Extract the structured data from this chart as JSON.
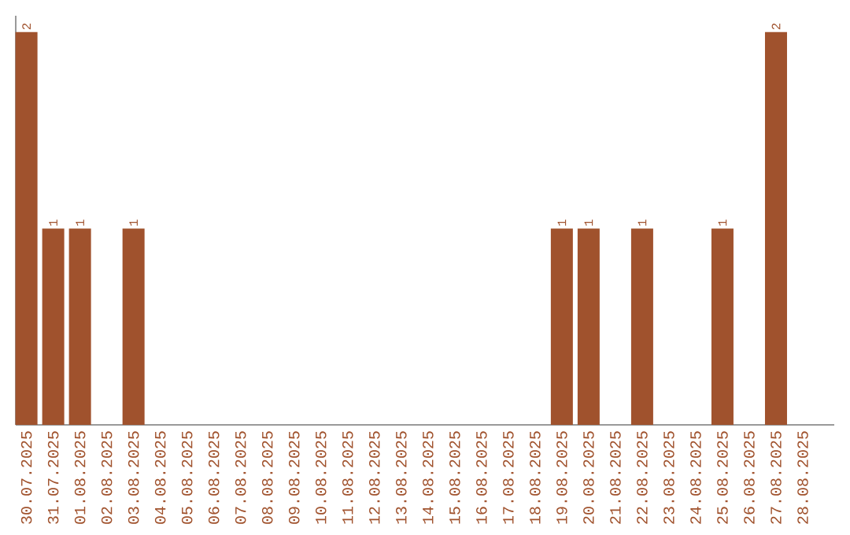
{
  "chart_data": {
    "type": "bar",
    "categories": [
      "30.07.2025",
      "31.07.2025",
      "01.08.2025",
      "02.08.2025",
      "03.08.2025",
      "04.08.2025",
      "05.08.2025",
      "06.08.2025",
      "07.08.2025",
      "08.08.2025",
      "09.08.2025",
      "10.08.2025",
      "11.08.2025",
      "12.08.2025",
      "13.08.2025",
      "14.08.2025",
      "15.08.2025",
      "16.08.2025",
      "17.08.2025",
      "18.08.2025",
      "19.08.2025",
      "20.08.2025",
      "21.08.2025",
      "22.08.2025",
      "23.08.2025",
      "24.08.2025",
      "25.08.2025",
      "26.08.2025",
      "27.08.2025",
      "28.08.2025"
    ],
    "values": [
      2,
      1,
      1,
      0,
      1,
      0,
      0,
      0,
      0,
      0,
      0,
      0,
      0,
      0,
      0,
      0,
      0,
      0,
      0,
      0,
      1,
      1,
      0,
      1,
      0,
      0,
      1,
      0,
      2,
      0
    ],
    "value_labels": [
      "2",
      "1",
      "1",
      null,
      "1",
      null,
      null,
      null,
      null,
      null,
      null,
      null,
      null,
      null,
      null,
      null,
      null,
      null,
      null,
      null,
      "1",
      "1",
      null,
      "1",
      null,
      null,
      "1",
      null,
      "2",
      null
    ],
    "color": "#a0522d"
  }
}
